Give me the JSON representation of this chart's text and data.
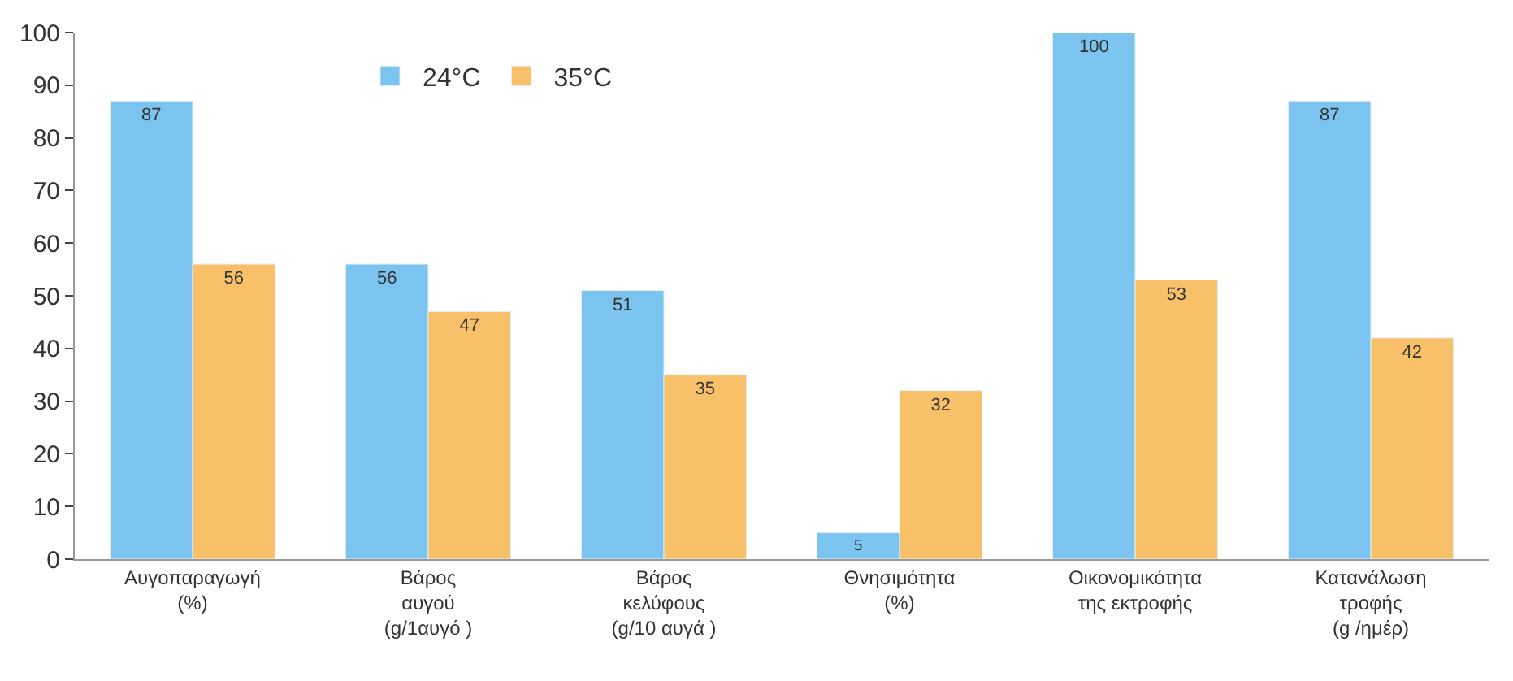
{
  "chart_data": {
    "type": "bar",
    "categories": [
      "Αυγοπαραγωγή\n(%)",
      "Βάρος\nαυγού\n(g/1αυγό )",
      "Βάρος\nκελύφους\n(g/10 αυγά )",
      "Θνησιμότητα\n(%)",
      "Οικονομικότητα\nτης εκτροφής",
      "Κατανάλωση\nτροφής\n(g /ημέρ)"
    ],
    "series": [
      {
        "name": "24°C",
        "color": "#7cc4f0",
        "values": [
          87,
          56,
          51,
          5,
          100,
          87
        ]
      },
      {
        "name": "35°C",
        "color": "#f8c068",
        "values": [
          56,
          47,
          35,
          32,
          53,
          42
        ]
      }
    ],
    "ylim": [
      0,
      100
    ],
    "yticks": [
      0,
      10,
      20,
      30,
      40,
      50,
      60,
      70,
      80,
      90,
      100
    ],
    "legend": "top left",
    "data_labels": true
  }
}
